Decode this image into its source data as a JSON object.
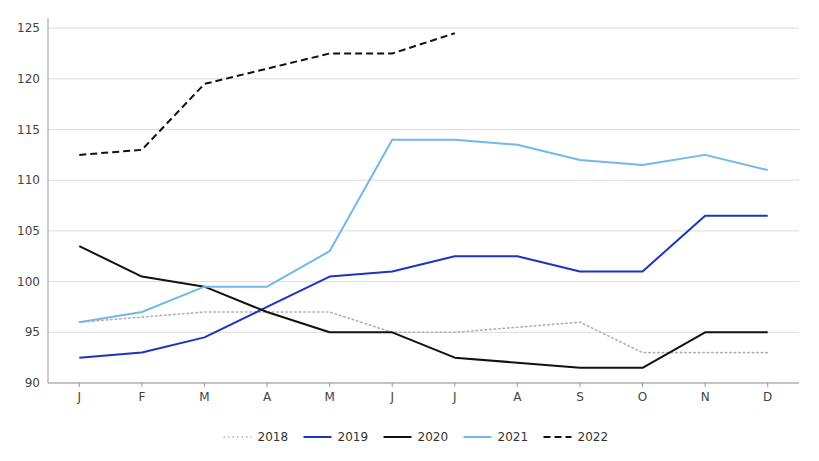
{
  "chart_data": {
    "type": "line",
    "categories": [
      "J",
      "F",
      "M",
      "A",
      "M",
      "J",
      "J",
      "A",
      "S",
      "O",
      "N",
      "D"
    ],
    "series": [
      {
        "name": "2018",
        "color": "#b0b0b0",
        "line_style": "dotted",
        "values": [
          96,
          96.5,
          97,
          97,
          97,
          95,
          95,
          95.5,
          96,
          93,
          93,
          93
        ]
      },
      {
        "name": "2019",
        "color": "#1a35c0",
        "line_style": "solid",
        "values": [
          92.5,
          93,
          94.5,
          97.5,
          100.5,
          101,
          102.5,
          102.5,
          101,
          101,
          106.5,
          106.5
        ]
      },
      {
        "name": "2020",
        "color": "#111111",
        "line_style": "solid",
        "values": [
          103.5,
          100.5,
          99.5,
          97,
          95,
          95,
          92.5,
          92,
          91.5,
          91.5,
          95,
          95
        ]
      },
      {
        "name": "2021",
        "color": "#72b8e8",
        "line_style": "solid",
        "values": [
          96,
          97,
          99.5,
          99.5,
          103,
          114,
          114,
          113.5,
          112,
          111.5,
          112.5,
          111
        ]
      },
      {
        "name": "2022",
        "color": "#111111",
        "line_style": "dashed",
        "values": [
          112.5,
          113,
          119.5,
          121,
          122.5,
          122.5,
          124.5,
          null,
          null,
          null,
          null,
          null
        ]
      }
    ],
    "ylim": [
      90,
      126
    ],
    "yticks": [
      90,
      95,
      100,
      105,
      110,
      115,
      120,
      125
    ],
    "grid": true,
    "legend": "bottom"
  }
}
